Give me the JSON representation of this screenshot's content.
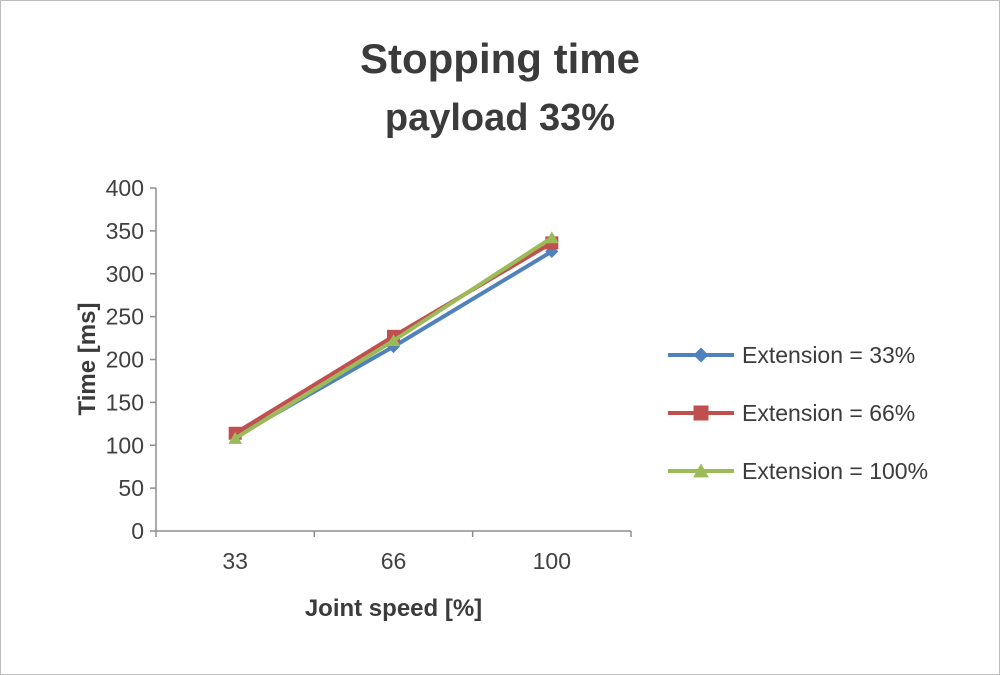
{
  "chart_data": {
    "type": "line",
    "title": "Stopping time",
    "subtitle": "payload 33%",
    "xlabel": "Joint speed [%]",
    "ylabel": "Time [ms]",
    "categories": [
      "33",
      "66",
      "100"
    ],
    "ylim": [
      0,
      400
    ],
    "ytick_step": 50,
    "grid": false,
    "legend_position": "right",
    "axis_color": "#8e8e8e",
    "tick_label_color": "#404040",
    "series": [
      {
        "name": "Extension = 33%",
        "color": "#4F81BD",
        "marker": "diamond",
        "values": [
          110,
          215,
          326
        ]
      },
      {
        "name": "Extension = 66%",
        "color": "#C0504D",
        "marker": "square",
        "values": [
          114,
          227,
          336
        ]
      },
      {
        "name": "Extension = 100%",
        "color": "#9BBB59",
        "marker": "triangle",
        "values": [
          108,
          222,
          342
        ]
      }
    ]
  }
}
